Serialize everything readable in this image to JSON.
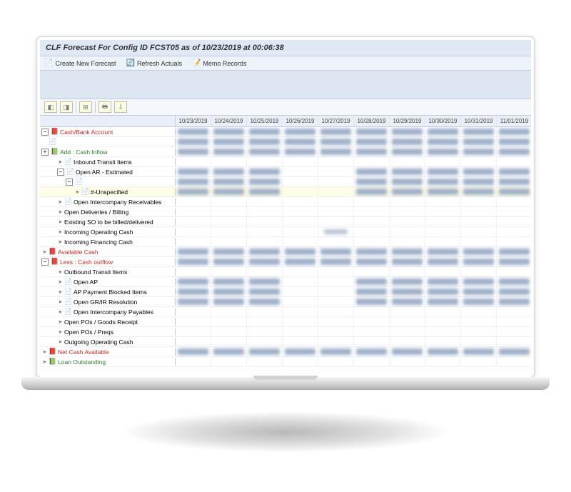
{
  "title": "CLF Forecast For Config ID FCST05 as of  10/23/2019 at 00:06:38",
  "toolbar": {
    "create": "Create New Forecast",
    "refresh": "Refresh Actuals",
    "memo": "Memo Records"
  },
  "dates": [
    "10/23/2019",
    "10/24/2019",
    "10/25/2019",
    "10/26/2019",
    "10/27/2019",
    "10/28/2019",
    "10/29/2019",
    "10/30/2019",
    "10/31/2019",
    "11/01/2019"
  ],
  "tree": [
    {
      "id": "cashbank",
      "label": "Cash/Bank Account",
      "indent": 0,
      "toggle": "minus",
      "color": "red",
      "icon": "📕",
      "fill": "full"
    },
    {
      "id": "cb1",
      "label": "",
      "indent": 1,
      "toggle": "",
      "icon": "📄",
      "fill": "full"
    },
    {
      "id": "addinflow",
      "label": "Add : Cash Inflow",
      "indent": 0,
      "toggle": "plus",
      "color": "green",
      "icon": "📗",
      "fill": "full"
    },
    {
      "id": "inbound",
      "label": "Inbound Transit Items",
      "indent": 2,
      "toggle": "",
      "icon": "📄",
      "fill": "none",
      "leaf": true
    },
    {
      "id": "openar",
      "label": "Open AR - Estimated",
      "indent": 2,
      "toggle": "minus",
      "icon": "📄",
      "fill": "partial"
    },
    {
      "id": "openar-sub",
      "label": "",
      "indent": 3,
      "toggle": "minus",
      "icon": "📄",
      "fill": "partial"
    },
    {
      "id": "unspec",
      "label": "#-Unspecified",
      "indent": 4,
      "toggle": "",
      "icon": "📄",
      "fill": "partial",
      "leaf": true,
      "highlight": true
    },
    {
      "id": "oir",
      "label": "Open Intercompany Receivables",
      "indent": 2,
      "toggle": "",
      "icon": "📄",
      "fill": "none",
      "leaf": true
    },
    {
      "id": "odb",
      "label": "Open Deliveries / Billing",
      "indent": 2,
      "toggle": "",
      "icon": "",
      "fill": "none",
      "leaf": true
    },
    {
      "id": "eso",
      "label": "Existing SO to be billed/delivered",
      "indent": 2,
      "toggle": "",
      "icon": "",
      "fill": "none",
      "leaf": true
    },
    {
      "id": "ioc",
      "label": "Incoming Operating Cash",
      "indent": 2,
      "toggle": "",
      "icon": "",
      "fill": "center",
      "leaf": true
    },
    {
      "id": "ifc",
      "label": "Incoming Financing Cash",
      "indent": 2,
      "toggle": "",
      "icon": "",
      "fill": "none",
      "leaf": true
    },
    {
      "id": "avail",
      "label": "Available Cash",
      "indent": 0,
      "toggle": "",
      "color": "red",
      "icon": "📕",
      "fill": "full",
      "leaf": true
    },
    {
      "id": "outflow",
      "label": "Less : Cash outflow",
      "indent": 0,
      "toggle": "minus",
      "color": "red",
      "icon": "📕",
      "fill": "full"
    },
    {
      "id": "obt",
      "label": "Outbound Transit Items",
      "indent": 2,
      "toggle": "",
      "icon": "",
      "fill": "none",
      "leaf": true
    },
    {
      "id": "oap",
      "label": "Open AP",
      "indent": 2,
      "toggle": "",
      "icon": "📄",
      "fill": "partial",
      "leaf": true
    },
    {
      "id": "apb",
      "label": "AP Payment Blocked Items",
      "indent": 2,
      "toggle": "",
      "icon": "📄",
      "fill": "partial",
      "leaf": true
    },
    {
      "id": "ogrir",
      "label": "Open GR/IR Resolution",
      "indent": 2,
      "toggle": "",
      "icon": "📄",
      "fill": "partial",
      "leaf": true
    },
    {
      "id": "oip",
      "label": "Open Intercompany Payables",
      "indent": 2,
      "toggle": "",
      "icon": "📄",
      "fill": "none",
      "leaf": true
    },
    {
      "id": "opg",
      "label": "Open POs / Goods Receipt",
      "indent": 2,
      "toggle": "",
      "icon": "",
      "fill": "none",
      "leaf": true
    },
    {
      "id": "opp",
      "label": "Open POs / Preqs",
      "indent": 2,
      "toggle": "",
      "icon": "",
      "fill": "none",
      "leaf": true
    },
    {
      "id": "ooc",
      "label": "Outgoing Operating Cash",
      "indent": 2,
      "toggle": "",
      "icon": "",
      "fill": "none",
      "leaf": true
    },
    {
      "id": "netcash",
      "label": "Net Cash Available",
      "indent": 0,
      "toggle": "",
      "color": "red",
      "icon": "📕",
      "fill": "full",
      "leaf": true
    },
    {
      "id": "loan",
      "label": "Loan Outstanding",
      "indent": 0,
      "toggle": "",
      "color": "green",
      "icon": "📗",
      "fill": "none",
      "leaf": true
    }
  ],
  "colors": {
    "header_bg": "#dfe8f4",
    "toolbar_bg": "#eef3fa",
    "spacer_bg": "#dde7f3",
    "red": "#c62828",
    "green": "#2e7d32",
    "highlight": "#fffce6"
  }
}
